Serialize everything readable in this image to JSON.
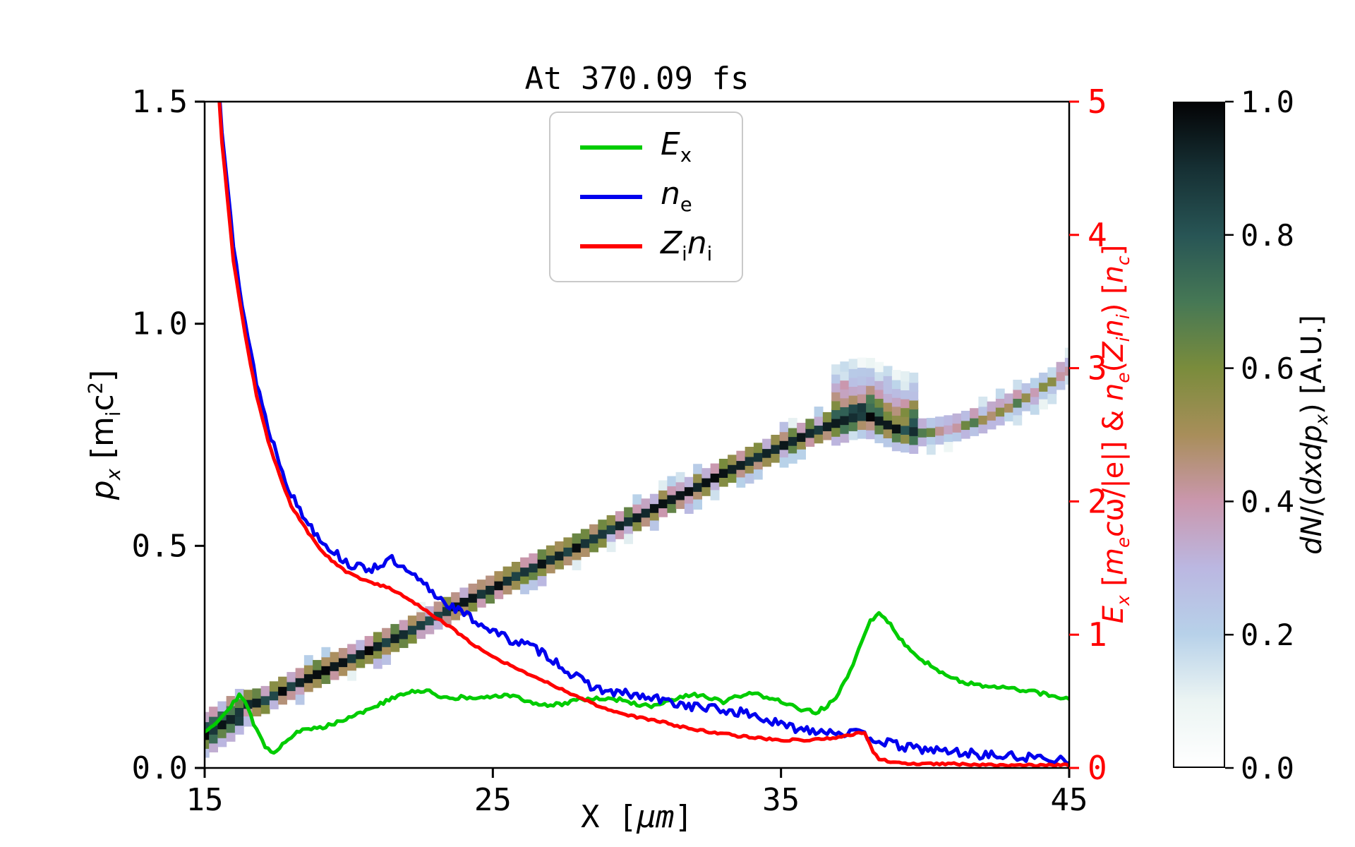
{
  "chart_data": {
    "type": "heatmap+line",
    "title": "At 370.09 fs",
    "xlabel": "X [μm]",
    "ylabel_left": "px [mic2]",
    "ylabel_right": "Ex [mecω/|e|] & ne(Zini) [nc]",
    "colorbar_label": "dN/(dxdpx) [A.U.]",
    "x_range": [
      15,
      45
    ],
    "y_left_range": [
      0.0,
      1.5
    ],
    "y_right_range": [
      0,
      5
    ],
    "x_ticks": [
      15,
      25,
      35,
      45
    ],
    "y_left_ticks": [
      "0.0",
      "0.5",
      "1.0",
      "1.5"
    ],
    "y_right_ticks": [
      "0",
      "1",
      "2",
      "3",
      "4",
      "5"
    ],
    "colorbar_ticks": [
      "0.0",
      "0.2",
      "0.4",
      "0.6",
      "0.8",
      "1.0"
    ],
    "legend_position": "upper center inside",
    "grid": false,
    "colors": {
      "ex": "#00cc00",
      "ne": "#0000ee",
      "zini": "#ff0000",
      "axis_right": "#ff0000",
      "spine": "#000000"
    },
    "colormap_stops": [
      [
        0.0,
        [
          255,
          255,
          255
        ]
      ],
      [
        0.1,
        [
          235,
          244,
          243
        ]
      ],
      [
        0.2,
        [
          183,
          209,
          233
        ]
      ],
      [
        0.3,
        [
          187,
          183,
          225
        ]
      ],
      [
        0.4,
        [
          202,
          151,
          173
        ]
      ],
      [
        0.5,
        [
          168,
          142,
          90
        ]
      ],
      [
        0.6,
        [
          122,
          140,
          60
        ]
      ],
      [
        0.7,
        [
          70,
          120,
          85
        ]
      ],
      [
        0.8,
        [
          40,
          85,
          85
        ]
      ],
      [
        0.9,
        [
          22,
          48,
          52
        ]
      ],
      [
        1.0,
        [
          4,
          4,
          6
        ]
      ]
    ],
    "series": [
      {
        "key": "ex",
        "name": "E_x",
        "axis": "right",
        "color": "#00cc00",
        "noise": 0.015,
        "points": [
          [
            15,
            0.28
          ],
          [
            15.4,
            0.34
          ],
          [
            15.8,
            0.44
          ],
          [
            16.2,
            0.55
          ],
          [
            16.5,
            0.45
          ],
          [
            16.8,
            0.28
          ],
          [
            17.1,
            0.16
          ],
          [
            17.4,
            0.12
          ],
          [
            17.8,
            0.2
          ],
          [
            18.2,
            0.27
          ],
          [
            18.6,
            0.29
          ],
          [
            19,
            0.3
          ],
          [
            19.4,
            0.33
          ],
          [
            19.8,
            0.36
          ],
          [
            20.2,
            0.4
          ],
          [
            20.6,
            0.43
          ],
          [
            21,
            0.47
          ],
          [
            21.5,
            0.52
          ],
          [
            22,
            0.56
          ],
          [
            22.4,
            0.58
          ],
          [
            22.8,
            0.57
          ],
          [
            23.2,
            0.54
          ],
          [
            23.6,
            0.52
          ],
          [
            24,
            0.53
          ],
          [
            24.5,
            0.52
          ],
          [
            25,
            0.53
          ],
          [
            25.4,
            0.55
          ],
          [
            25.8,
            0.53
          ],
          [
            26.2,
            0.5
          ],
          [
            26.6,
            0.48
          ],
          [
            27,
            0.47
          ],
          [
            27.4,
            0.48
          ],
          [
            27.8,
            0.51
          ],
          [
            28.2,
            0.52
          ],
          [
            28.6,
            0.52
          ],
          [
            29,
            0.52
          ],
          [
            29.4,
            0.51
          ],
          [
            29.8,
            0.49
          ],
          [
            30.2,
            0.47
          ],
          [
            30.6,
            0.46
          ],
          [
            31,
            0.49
          ],
          [
            31.4,
            0.52
          ],
          [
            31.8,
            0.54
          ],
          [
            32.2,
            0.55
          ],
          [
            32.6,
            0.52
          ],
          [
            33,
            0.49
          ],
          [
            33.4,
            0.53
          ],
          [
            33.8,
            0.55
          ],
          [
            34.2,
            0.55
          ],
          [
            34.6,
            0.53
          ],
          [
            35,
            0.5
          ],
          [
            35.4,
            0.46
          ],
          [
            35.8,
            0.43
          ],
          [
            36.2,
            0.42
          ],
          [
            36.6,
            0.46
          ],
          [
            37,
            0.56
          ],
          [
            37.4,
            0.72
          ],
          [
            37.8,
            0.95
          ],
          [
            38.1,
            1.1
          ],
          [
            38.35,
            1.16
          ],
          [
            38.6,
            1.13
          ],
          [
            38.9,
            1.04
          ],
          [
            39.3,
            0.93
          ],
          [
            39.7,
            0.85
          ],
          [
            40.1,
            0.78
          ],
          [
            40.5,
            0.72
          ],
          [
            41,
            0.67
          ],
          [
            41.5,
            0.64
          ],
          [
            42,
            0.61
          ],
          [
            42.5,
            0.6
          ],
          [
            43,
            0.6
          ],
          [
            43.5,
            0.58
          ],
          [
            44,
            0.56
          ],
          [
            44.5,
            0.54
          ],
          [
            45,
            0.52
          ]
        ]
      },
      {
        "key": "ne",
        "name": "n_e",
        "axis": "right",
        "color": "#0000ee",
        "noise": 0.035,
        "points": [
          [
            15,
            7.5
          ],
          [
            15.3,
            5.8
          ],
          [
            15.6,
            4.8
          ],
          [
            16,
            3.9
          ],
          [
            16.4,
            3.35
          ],
          [
            16.8,
            2.9
          ],
          [
            17.2,
            2.55
          ],
          [
            17.6,
            2.3
          ],
          [
            18,
            2.05
          ],
          [
            18.4,
            1.9
          ],
          [
            18.8,
            1.78
          ],
          [
            19.2,
            1.68
          ],
          [
            19.6,
            1.6
          ],
          [
            20,
            1.53
          ],
          [
            20.4,
            1.5
          ],
          [
            20.8,
            1.5
          ],
          [
            21.2,
            1.54
          ],
          [
            21.5,
            1.56
          ],
          [
            21.8,
            1.5
          ],
          [
            22.2,
            1.44
          ],
          [
            22.6,
            1.38
          ],
          [
            23,
            1.3
          ],
          [
            23.4,
            1.24
          ],
          [
            23.8,
            1.18
          ],
          [
            24.2,
            1.13
          ],
          [
            24.6,
            1.08
          ],
          [
            25,
            1.03
          ],
          [
            25.4,
            0.98
          ],
          [
            25.8,
            0.95
          ],
          [
            26.2,
            0.92
          ],
          [
            26.6,
            0.88
          ],
          [
            27,
            0.83
          ],
          [
            27.4,
            0.76
          ],
          [
            27.8,
            0.69
          ],
          [
            28.2,
            0.64
          ],
          [
            28.6,
            0.6
          ],
          [
            29,
            0.57
          ],
          [
            29.4,
            0.56
          ],
          [
            29.8,
            0.55
          ],
          [
            30.2,
            0.53
          ],
          [
            30.6,
            0.52
          ],
          [
            31,
            0.5
          ],
          [
            31.5,
            0.48
          ],
          [
            32,
            0.46
          ],
          [
            32.5,
            0.45
          ],
          [
            33,
            0.43
          ],
          [
            33.5,
            0.42
          ],
          [
            34,
            0.4
          ],
          [
            34.5,
            0.36
          ],
          [
            35,
            0.32
          ],
          [
            35.5,
            0.3
          ],
          [
            36,
            0.29
          ],
          [
            36.5,
            0.28
          ],
          [
            37,
            0.27
          ],
          [
            37.5,
            0.26
          ],
          [
            38,
            0.24
          ],
          [
            38.5,
            0.2
          ],
          [
            39,
            0.17
          ],
          [
            39.5,
            0.15
          ],
          [
            40,
            0.14
          ],
          [
            40.5,
            0.13
          ],
          [
            41,
            0.12
          ],
          [
            41.5,
            0.11
          ],
          [
            42,
            0.1
          ],
          [
            42.5,
            0.09
          ],
          [
            43,
            0.085
          ],
          [
            43.5,
            0.08
          ],
          [
            44,
            0.075
          ],
          [
            44.5,
            0.07
          ],
          [
            45,
            0.07
          ]
        ]
      },
      {
        "key": "zini",
        "name": "Z_i n_i",
        "axis": "right",
        "color": "#ff0000",
        "noise": 0.008,
        "points": [
          [
            15,
            7.5
          ],
          [
            15.3,
            5.7
          ],
          [
            15.6,
            4.7
          ],
          [
            16,
            3.8
          ],
          [
            16.4,
            3.25
          ],
          [
            16.8,
            2.8
          ],
          [
            17.2,
            2.45
          ],
          [
            17.6,
            2.2
          ],
          [
            18,
            1.97
          ],
          [
            18.4,
            1.83
          ],
          [
            18.8,
            1.7
          ],
          [
            19.2,
            1.6
          ],
          [
            19.6,
            1.52
          ],
          [
            20,
            1.46
          ],
          [
            20.5,
            1.41
          ],
          [
            21,
            1.38
          ],
          [
            21.5,
            1.34
          ],
          [
            22,
            1.28
          ],
          [
            22.5,
            1.21
          ],
          [
            23,
            1.13
          ],
          [
            23.5,
            1.06
          ],
          [
            24,
            0.98
          ],
          [
            24.5,
            0.9
          ],
          [
            25,
            0.84
          ],
          [
            25.5,
            0.78
          ],
          [
            26,
            0.73
          ],
          [
            26.5,
            0.68
          ],
          [
            27,
            0.63
          ],
          [
            27.5,
            0.58
          ],
          [
            28,
            0.53
          ],
          [
            28.5,
            0.48
          ],
          [
            29,
            0.44
          ],
          [
            29.5,
            0.41
          ],
          [
            30,
            0.38
          ],
          [
            30.5,
            0.36
          ],
          [
            31,
            0.34
          ],
          [
            31.5,
            0.31
          ],
          [
            32,
            0.29
          ],
          [
            32.5,
            0.27
          ],
          [
            33,
            0.26
          ],
          [
            33.5,
            0.24
          ],
          [
            34,
            0.23
          ],
          [
            34.5,
            0.22
          ],
          [
            35,
            0.21
          ],
          [
            35.5,
            0.21
          ],
          [
            36,
            0.21
          ],
          [
            36.5,
            0.22
          ],
          [
            37,
            0.23
          ],
          [
            37.5,
            0.25
          ],
          [
            37.9,
            0.27
          ],
          [
            38.05,
            0.2
          ],
          [
            38.2,
            0.12
          ],
          [
            38.4,
            0.07
          ],
          [
            38.7,
            0.05
          ],
          [
            39,
            0.04
          ],
          [
            39.5,
            0.035
          ],
          [
            40,
            0.03
          ],
          [
            41,
            0.03
          ],
          [
            42,
            0.025
          ],
          [
            43,
            0.02
          ],
          [
            44,
            0.02
          ],
          [
            45,
            0.02
          ]
        ]
      }
    ],
    "phase_space_ridge": [
      [
        15,
        0.075
      ],
      [
        16,
        0.115
      ],
      [
        16.5,
        0.145
      ],
      [
        17,
        0.15
      ],
      [
        18,
        0.185
      ],
      [
        19,
        0.215
      ],
      [
        20,
        0.245
      ],
      [
        21,
        0.275
      ],
      [
        22,
        0.305
      ],
      [
        23,
        0.34
      ],
      [
        24,
        0.375
      ],
      [
        25,
        0.405
      ],
      [
        26,
        0.44
      ],
      [
        27,
        0.47
      ],
      [
        28,
        0.5
      ],
      [
        29,
        0.535
      ],
      [
        30,
        0.565
      ],
      [
        31,
        0.6
      ],
      [
        32,
        0.63
      ],
      [
        33,
        0.665
      ],
      [
        34,
        0.695
      ],
      [
        35,
        0.725
      ],
      [
        36,
        0.755
      ],
      [
        37,
        0.78
      ],
      [
        37.5,
        0.79
      ],
      [
        38,
        0.795
      ],
      [
        38.5,
        0.78
      ],
      [
        39,
        0.765
      ],
      [
        40,
        0.755
      ],
      [
        41,
        0.765
      ],
      [
        42,
        0.785
      ],
      [
        43,
        0.815
      ],
      [
        44,
        0.855
      ],
      [
        45,
        0.895
      ]
    ],
    "phase_space_blob": {
      "x_range": [
        36.8,
        39.7
      ],
      "p_spread_up": 0.12,
      "p_spread_down": 0.04
    },
    "heatmap_bin": {
      "dx": 0.3,
      "dp": 0.022
    }
  },
  "labels_html": {
    "xlabel": "X [<i>μm</i>]",
    "ylabel_left": "<i>p<sub>x</sub></i> [m<sub>i</sub>c<sup>2</sup>]",
    "ylabel_right": "<i>E<sub>x</sub></i> [<i>m<sub>e</sub>c</i>ω/|e|] &amp; <i>n<sub>e</sub></i>(<i>Z<sub>i</sub>n<sub>i</sub></i>) [<i>n<sub>c</sub></i>]",
    "colorbar": "<i>dN</i>/(<i>dxdp<sub>x</sub></i>) [A.U.]"
  },
  "legend": {
    "items": [
      {
        "key": "ex",
        "label_html": "<i>E</i><sub>x</sub>",
        "color": "#00cc00"
      },
      {
        "key": "ne",
        "label_html": "<i>n</i><sub>e</sub>",
        "color": "#0000ee"
      },
      {
        "key": "zini",
        "label_html": "<i>Z</i><sub>i</sub><i>n</i><sub>i</sub>",
        "color": "#ff0000"
      }
    ]
  }
}
